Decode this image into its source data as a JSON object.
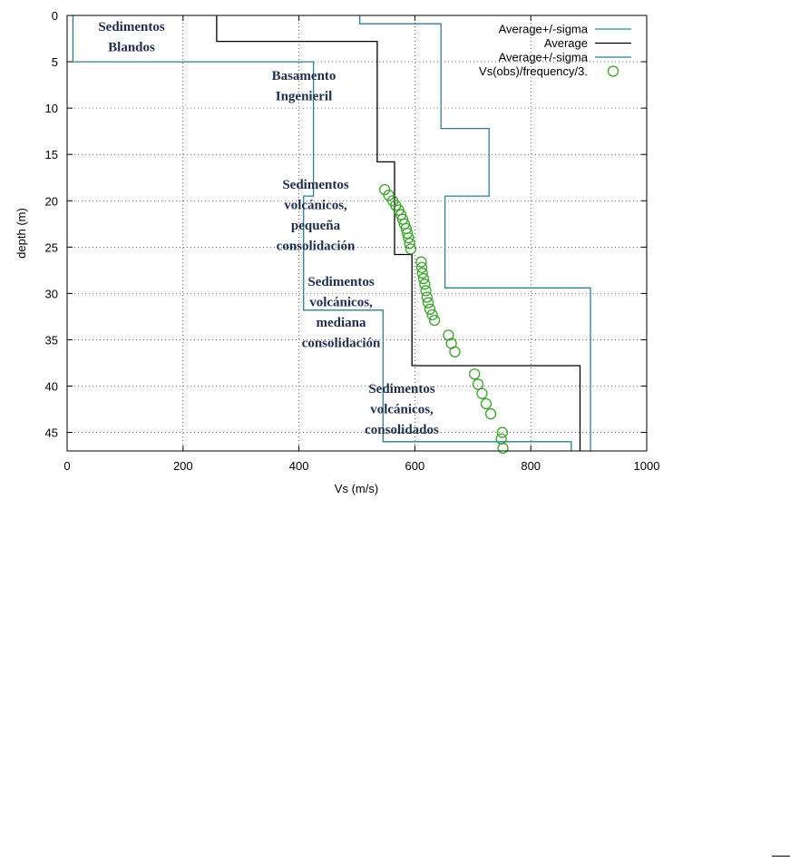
{
  "chart_data": {
    "type": "line",
    "xlabel": "Vs (m/s)",
    "ylabel": "depth (m)",
    "xlim": [
      0,
      1000
    ],
    "ylim": [
      0,
      47
    ],
    "y_inverted": true,
    "xticks": [
      "0",
      "200",
      "400",
      "600",
      "800",
      "1000"
    ],
    "yticks": [
      "0",
      "5",
      "10",
      "15",
      "20",
      "25",
      "30",
      "35",
      "40",
      "45"
    ],
    "grid": true,
    "legend_position": "top-right",
    "series": [
      {
        "name": "Average+/-sigma",
        "kind": "step",
        "color": "#2f7f93",
        "points": [
          [
            10,
            0
          ],
          [
            10,
            5
          ],
          [
            425,
            5
          ],
          [
            425,
            19.5
          ],
          [
            408,
            19.5
          ],
          [
            408,
            31.8
          ],
          [
            545,
            31.8
          ],
          [
            545,
            46
          ],
          [
            870,
            46
          ],
          [
            870,
            47
          ]
        ]
      },
      {
        "name": "Average",
        "kind": "step",
        "color": "#000000",
        "points": [
          [
            258,
            0
          ],
          [
            258,
            2.8
          ],
          [
            535,
            2.8
          ],
          [
            535,
            15.8
          ],
          [
            565,
            15.8
          ],
          [
            565,
            25.8
          ],
          [
            595,
            25.8
          ],
          [
            595,
            37.8
          ],
          [
            885,
            37.8
          ],
          [
            885,
            47
          ]
        ]
      },
      {
        "name": "Average+/-sigma",
        "kind": "step",
        "color": "#2f7f93",
        "points": [
          [
            505,
            0
          ],
          [
            505,
            0.9
          ],
          [
            645,
            0.9
          ],
          [
            645,
            12.2
          ],
          [
            728,
            12.2
          ],
          [
            728,
            19.5
          ],
          [
            652,
            19.5
          ],
          [
            652,
            29.4
          ],
          [
            903,
            29.4
          ],
          [
            903,
            47
          ]
        ]
      },
      {
        "name": "Vs(obs)/frequency/3.",
        "kind": "scatter",
        "color": "#3aa32a",
        "points": [
          [
            548,
            18.8
          ],
          [
            555,
            19.4
          ],
          [
            562,
            20.0
          ],
          [
            567,
            20.5
          ],
          [
            572,
            21.0
          ],
          [
            576,
            21.5
          ],
          [
            579,
            22.0
          ],
          [
            582,
            22.5
          ],
          [
            585,
            23.0
          ],
          [
            587,
            23.5
          ],
          [
            589,
            24.0
          ],
          [
            591,
            24.6
          ],
          [
            593,
            25.2
          ],
          [
            611,
            26.6
          ],
          [
            612,
            27.2
          ],
          [
            613,
            27.8
          ],
          [
            615,
            28.4
          ],
          [
            617,
            29.0
          ],
          [
            619,
            29.7
          ],
          [
            621,
            30.4
          ],
          [
            623,
            31.0
          ],
          [
            626,
            31.7
          ],
          [
            630,
            32.3
          ],
          [
            634,
            32.9
          ],
          [
            658,
            34.5
          ],
          [
            663,
            35.4
          ],
          [
            669,
            36.3
          ],
          [
            703,
            38.7
          ],
          [
            709,
            39.8
          ],
          [
            716,
            40.8
          ],
          [
            723,
            41.9
          ],
          [
            731,
            43.0
          ],
          [
            751,
            45.0
          ],
          [
            749,
            45.7
          ],
          [
            752,
            46.7
          ]
        ]
      }
    ],
    "annotations": [
      {
        "lines": [
          "Sedimentos",
          "Blandos"
        ]
      },
      {
        "lines": [
          "Basamento",
          "Ingenieril"
        ]
      },
      {
        "lines": [
          "Sedimentos",
          "volcánicos,",
          "pequeña",
          "consolidación"
        ]
      },
      {
        "lines": [
          "Sedimentos",
          "volcánicos,",
          "mediana",
          "consolidación"
        ]
      },
      {
        "lines": [
          "Sedimentos",
          "volcánicos,",
          "consolidados"
        ]
      }
    ]
  }
}
